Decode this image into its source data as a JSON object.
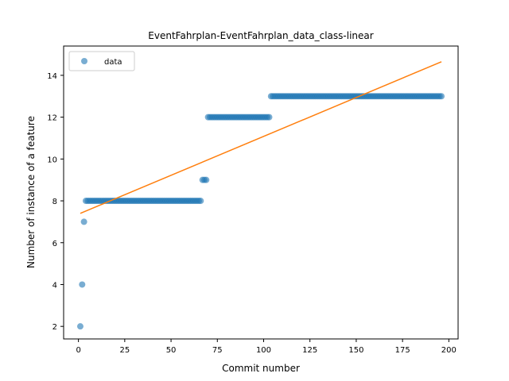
{
  "chart_data": {
    "type": "scatter",
    "title": "EventFahrplan-EventFahrplan_data_class-linear",
    "xlabel": "Commit number",
    "ylabel": "Number of instance of a feature",
    "xlim": [
      -8,
      205
    ],
    "ylim": [
      1.4,
      15.4
    ],
    "xticks": [
      0,
      25,
      50,
      75,
      100,
      125,
      150,
      175,
      200
    ],
    "yticks": [
      2,
      4,
      6,
      8,
      10,
      12,
      14
    ],
    "legend": {
      "position": "top-left",
      "entries": [
        "data"
      ]
    },
    "grid": false,
    "series": [
      {
        "name": "data",
        "kind": "scatter",
        "color": "#1f77b4",
        "segments": [
          {
            "x": [
              1
            ],
            "y": 2
          },
          {
            "x": [
              2
            ],
            "y": 4
          },
          {
            "x": [
              3
            ],
            "y": 7
          },
          {
            "x_range": [
              4,
              66
            ],
            "y": 8
          },
          {
            "x_range": [
              67,
              69
            ],
            "y": 9
          },
          {
            "x_range": [
              70,
              103
            ],
            "y": 12
          },
          {
            "x_range": [
              104,
              196
            ],
            "y": 13
          }
        ]
      },
      {
        "kind": "line",
        "color": "#ff7f0e",
        "x": [
          1,
          196
        ],
        "y": [
          7.4,
          14.65
        ]
      }
    ]
  }
}
